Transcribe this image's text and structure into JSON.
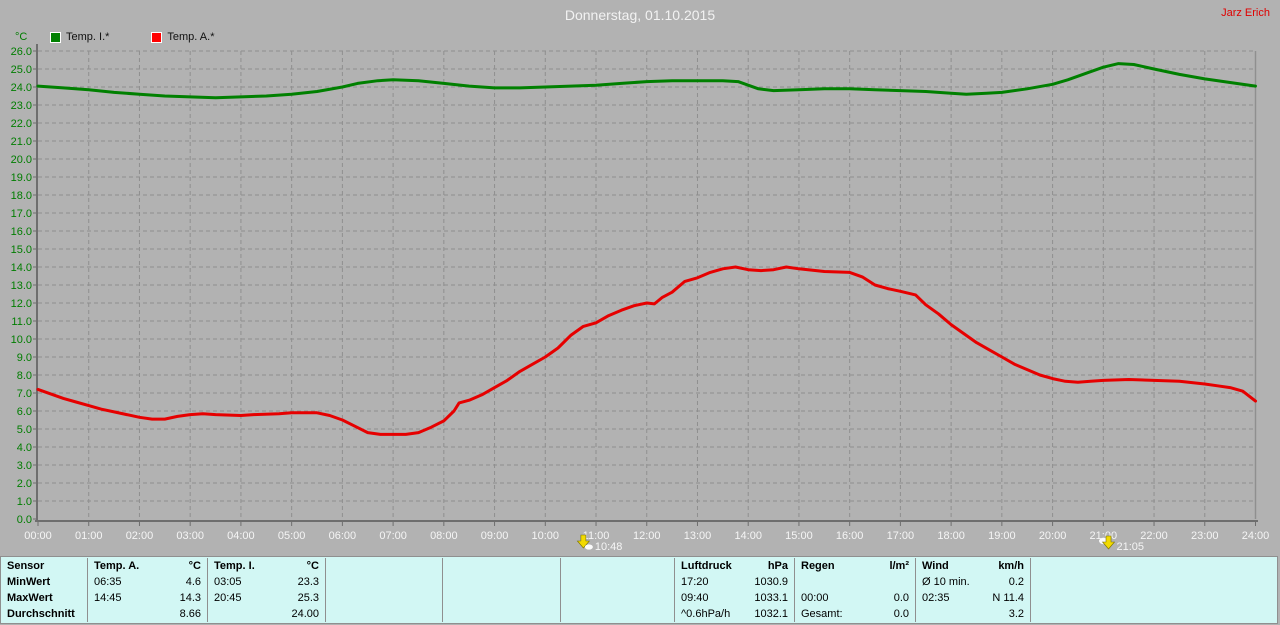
{
  "header": {
    "title": "Donnerstag, 01.10.2015",
    "user": "Jarz Erich"
  },
  "legend": {
    "unit": "°C",
    "items": [
      {
        "label": "Temp. I.*",
        "color": "#008000"
      },
      {
        "label": "Temp. A.*",
        "color": "#ff0000"
      }
    ]
  },
  "chart_data": {
    "type": "line",
    "title": "Donnerstag, 01.10.2015",
    "xlabel": "",
    "ylabel": "°C",
    "ylim": [
      0,
      26
    ],
    "xlim": [
      0,
      24
    ],
    "grid": "dashed",
    "legend_position": "top-left",
    "x_tick_labels": [
      "00:00",
      "01:00",
      "02:00",
      "03:00",
      "04:00",
      "05:00",
      "06:00",
      "07:00",
      "08:00",
      "09:00",
      "10:00",
      "11:00",
      "12:00",
      "13:00",
      "14:00",
      "15:00",
      "16:00",
      "17:00",
      "18:00",
      "19:00",
      "20:00",
      "21:00",
      "22:00",
      "23:00",
      "24:00"
    ],
    "series": [
      {
        "name": "Temp. I.*",
        "color": "#008000",
        "points": [
          [
            0,
            24.05
          ],
          [
            0.5,
            23.95
          ],
          [
            1,
            23.85
          ],
          [
            1.5,
            23.7
          ],
          [
            2,
            23.6
          ],
          [
            2.5,
            23.5
          ],
          [
            3,
            23.45
          ],
          [
            3.5,
            23.4
          ],
          [
            4,
            23.45
          ],
          [
            4.5,
            23.5
          ],
          [
            5,
            23.6
          ],
          [
            5.5,
            23.75
          ],
          [
            6,
            24.0
          ],
          [
            6.3,
            24.2
          ],
          [
            6.7,
            24.35
          ],
          [
            7,
            24.4
          ],
          [
            7.5,
            24.35
          ],
          [
            8,
            24.2
          ],
          [
            8.5,
            24.05
          ],
          [
            9,
            23.95
          ],
          [
            9.5,
            23.95
          ],
          [
            10,
            24.0
          ],
          [
            10.5,
            24.05
          ],
          [
            11,
            24.1
          ],
          [
            11.5,
            24.2
          ],
          [
            12,
            24.3
          ],
          [
            12.5,
            24.35
          ],
          [
            13,
            24.35
          ],
          [
            13.5,
            24.35
          ],
          [
            13.8,
            24.3
          ],
          [
            14,
            24.1
          ],
          [
            14.2,
            23.9
          ],
          [
            14.5,
            23.8
          ],
          [
            15,
            23.85
          ],
          [
            15.5,
            23.9
          ],
          [
            16,
            23.9
          ],
          [
            16.5,
            23.85
          ],
          [
            17,
            23.8
          ],
          [
            17.5,
            23.75
          ],
          [
            18,
            23.65
          ],
          [
            18.3,
            23.6
          ],
          [
            18.7,
            23.65
          ],
          [
            19,
            23.7
          ],
          [
            19.5,
            23.9
          ],
          [
            20,
            24.15
          ],
          [
            20.3,
            24.4
          ],
          [
            20.7,
            24.8
          ],
          [
            21,
            25.1
          ],
          [
            21.3,
            25.3
          ],
          [
            21.6,
            25.25
          ],
          [
            22,
            25.0
          ],
          [
            22.5,
            24.7
          ],
          [
            23,
            24.45
          ],
          [
            23.5,
            24.25
          ],
          [
            24,
            24.05
          ]
        ]
      },
      {
        "name": "Temp. A.*",
        "color": "#e60000",
        "points": [
          [
            0,
            7.2
          ],
          [
            0.25,
            6.95
          ],
          [
            0.5,
            6.7
          ],
          [
            0.75,
            6.5
          ],
          [
            1,
            6.3
          ],
          [
            1.25,
            6.1
          ],
          [
            1.5,
            5.95
          ],
          [
            1.75,
            5.8
          ],
          [
            2,
            5.65
          ],
          [
            2.25,
            5.55
          ],
          [
            2.5,
            5.55
          ],
          [
            2.75,
            5.7
          ],
          [
            3,
            5.8
          ],
          [
            3.25,
            5.85
          ],
          [
            3.5,
            5.8
          ],
          [
            4,
            5.75
          ],
          [
            4.25,
            5.8
          ],
          [
            4.75,
            5.85
          ],
          [
            5,
            5.9
          ],
          [
            5.5,
            5.9
          ],
          [
            5.75,
            5.75
          ],
          [
            6,
            5.5
          ],
          [
            6.25,
            5.15
          ],
          [
            6.5,
            4.8
          ],
          [
            6.75,
            4.7
          ],
          [
            7,
            4.7
          ],
          [
            7.25,
            4.7
          ],
          [
            7.5,
            4.8
          ],
          [
            7.75,
            5.1
          ],
          [
            8,
            5.45
          ],
          [
            8.2,
            6.0
          ],
          [
            8.3,
            6.45
          ],
          [
            8.5,
            6.6
          ],
          [
            8.75,
            6.9
          ],
          [
            9,
            7.3
          ],
          [
            9.25,
            7.7
          ],
          [
            9.5,
            8.2
          ],
          [
            9.75,
            8.6
          ],
          [
            10,
            9.0
          ],
          [
            10.25,
            9.5
          ],
          [
            10.5,
            10.2
          ],
          [
            10.75,
            10.7
          ],
          [
            11,
            10.9
          ],
          [
            11.25,
            11.3
          ],
          [
            11.5,
            11.6
          ],
          [
            11.75,
            11.85
          ],
          [
            12,
            12.0
          ],
          [
            12.15,
            11.95
          ],
          [
            12.3,
            12.3
          ],
          [
            12.5,
            12.6
          ],
          [
            12.75,
            13.2
          ],
          [
            13,
            13.4
          ],
          [
            13.25,
            13.7
          ],
          [
            13.5,
            13.9
          ],
          [
            13.75,
            14.0
          ],
          [
            14,
            13.85
          ],
          [
            14.25,
            13.8
          ],
          [
            14.5,
            13.85
          ],
          [
            14.75,
            14.0
          ],
          [
            15,
            13.9
          ],
          [
            15.5,
            13.75
          ],
          [
            16,
            13.7
          ],
          [
            16.25,
            13.45
          ],
          [
            16.5,
            13.0
          ],
          [
            16.75,
            12.8
          ],
          [
            17,
            12.65
          ],
          [
            17.3,
            12.45
          ],
          [
            17.5,
            11.9
          ],
          [
            17.75,
            11.4
          ],
          [
            18,
            10.8
          ],
          [
            18.25,
            10.3
          ],
          [
            18.5,
            9.8
          ],
          [
            18.75,
            9.4
          ],
          [
            19,
            9.0
          ],
          [
            19.25,
            8.6
          ],
          [
            19.5,
            8.3
          ],
          [
            19.75,
            8.0
          ],
          [
            20,
            7.8
          ],
          [
            20.25,
            7.65
          ],
          [
            20.5,
            7.6
          ],
          [
            20.75,
            7.65
          ],
          [
            21,
            7.7
          ],
          [
            21.5,
            7.75
          ],
          [
            22,
            7.7
          ],
          [
            22.5,
            7.65
          ],
          [
            23,
            7.5
          ],
          [
            23.25,
            7.4
          ],
          [
            23.5,
            7.3
          ],
          [
            23.75,
            7.1
          ],
          [
            24,
            6.55
          ]
        ]
      }
    ],
    "markers": [
      {
        "label": "10:48",
        "hour": 10.8,
        "icon": "moonset-marker-icon"
      },
      {
        "label": "21:05",
        "hour": 21.083,
        "icon": "moonrise-marker-icon"
      }
    ]
  },
  "panel": {
    "row_headers": [
      "Sensor",
      "MinWert",
      "MaxWert",
      "Durchschnitt"
    ],
    "sections": [
      {
        "title": "Temp. A.",
        "unit": "°C",
        "rows": [
          [
            "06:35",
            "4.6"
          ],
          [
            "14:45",
            "14.3"
          ],
          [
            "",
            "8.66"
          ]
        ]
      },
      {
        "title": "Temp. I.",
        "unit": "°C",
        "rows": [
          [
            "03:05",
            "23.3"
          ],
          [
            "20:45",
            "25.3"
          ],
          [
            "",
            "24.00"
          ]
        ]
      },
      {
        "title": "",
        "unit": "",
        "rows": [
          [
            "",
            ""
          ],
          [
            "",
            ""
          ],
          [
            "",
            ""
          ]
        ]
      },
      {
        "title": "",
        "unit": "",
        "rows": [
          [
            "",
            ""
          ],
          [
            "",
            ""
          ],
          [
            "",
            ""
          ]
        ]
      },
      {
        "title": "",
        "unit": "",
        "rows": [
          [
            "",
            ""
          ],
          [
            "",
            ""
          ],
          [
            "",
            ""
          ]
        ]
      },
      {
        "title": "Luftdruck",
        "unit": "hPa",
        "rows": [
          [
            "17:20",
            "1030.9"
          ],
          [
            "09:40",
            "1033.1"
          ],
          [
            "^0.6hPa/h",
            "1032.1"
          ]
        ]
      },
      {
        "title": "Regen",
        "unit": "l/m²",
        "rows": [
          [
            "",
            ""
          ],
          [
            "00:00",
            "0.0"
          ],
          [
            "Gesamt:",
            "0.0"
          ]
        ]
      },
      {
        "title": "Wind",
        "unit": "km/h",
        "rows": [
          [
            "Ø 10 min.",
            "0.2"
          ],
          [
            "02:35",
            "N 11.4"
          ],
          [
            "",
            "3.2"
          ]
        ]
      },
      {
        "title": "",
        "unit": "",
        "rows": [
          [
            "",
            ""
          ],
          [
            "",
            ""
          ],
          [
            "",
            ""
          ]
        ]
      }
    ]
  }
}
